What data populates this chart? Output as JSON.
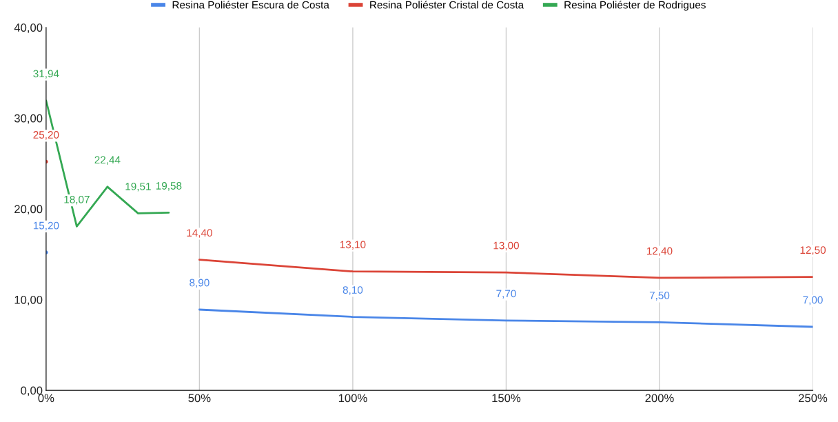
{
  "chart_data": {
    "type": "line",
    "x": [
      0,
      10,
      20,
      30,
      40,
      50,
      100,
      150,
      200,
      250
    ],
    "series": [
      {
        "name": "Resina Poliéster Escura de Costa",
        "color": "#4a86e8",
        "values": [
          15.2,
          null,
          null,
          null,
          null,
          8.9,
          8.1,
          7.7,
          7.5,
          7.0
        ],
        "value_labels": [
          "15,20",
          null,
          null,
          null,
          null,
          "8,90",
          "8,10",
          "7,70",
          "7,50",
          "7,00"
        ]
      },
      {
        "name": "Resina Poliéster Cristal de Costa",
        "color": "#db4437",
        "values": [
          25.2,
          null,
          null,
          null,
          null,
          14.4,
          13.1,
          13.0,
          12.4,
          12.5
        ],
        "value_labels": [
          "25,20",
          null,
          null,
          null,
          null,
          "14,40",
          "13,10",
          "13,00",
          "12,40",
          "12,50"
        ]
      },
      {
        "name": "Resina Poliéster de Rodrigues",
        "color": "#34a853",
        "values": [
          31.94,
          18.07,
          22.44,
          19.51,
          19.58,
          null,
          null,
          null,
          null,
          null
        ],
        "value_labels": [
          "31,94",
          "18,07",
          "22,44",
          "19,51",
          "19,58",
          null,
          null,
          null,
          null,
          null
        ]
      }
    ],
    "xlim": [
      0,
      250
    ],
    "xticks": [
      {
        "value": 0,
        "label": "0%"
      },
      {
        "value": 50,
        "label": "50%"
      },
      {
        "value": 100,
        "label": "100%"
      },
      {
        "value": 150,
        "label": "150%"
      },
      {
        "value": 200,
        "label": "200%"
      },
      {
        "value": 250,
        "label": "250%"
      }
    ],
    "ylim": [
      0,
      40
    ],
    "yticks": [
      {
        "value": 0,
        "label": "0,00"
      },
      {
        "value": 10,
        "label": "10,00"
      },
      {
        "value": 20,
        "label": "20,00"
      },
      {
        "value": 30,
        "label": "30,00"
      },
      {
        "value": 40,
        "label": "40,00"
      }
    ],
    "grid": "x",
    "legend": "top",
    "marker": "none",
    "line_style": "solid"
  }
}
